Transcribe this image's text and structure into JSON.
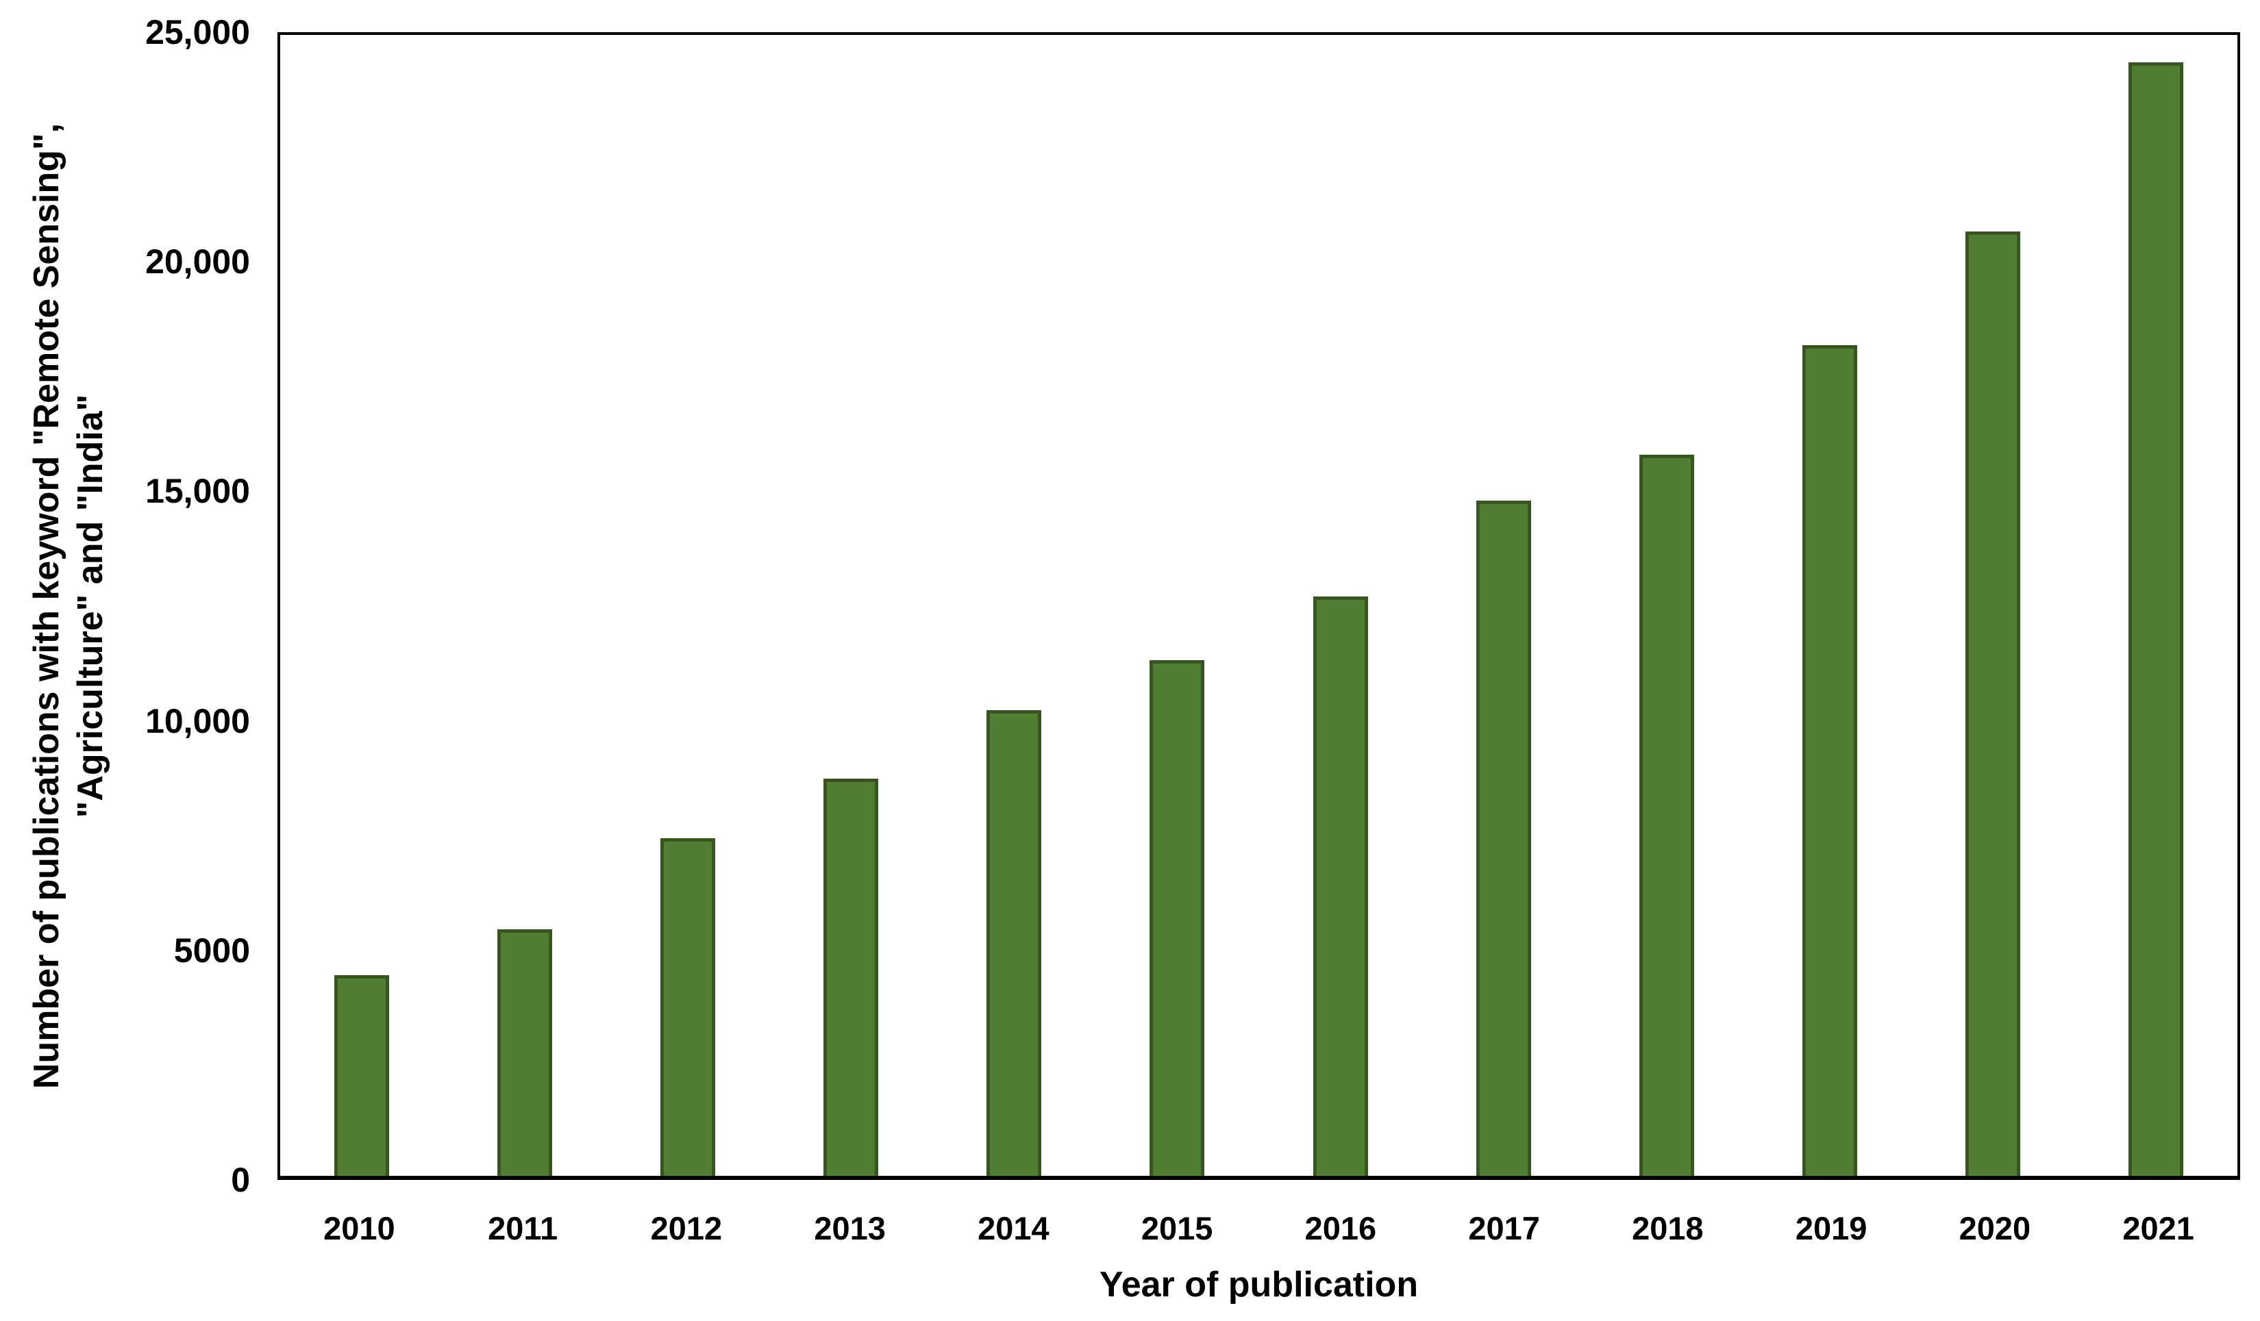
{
  "chart_data": {
    "type": "bar",
    "title": "",
    "categories": [
      "2010",
      "2011",
      "2012",
      "2013",
      "2014",
      "2015",
      "2016",
      "2017",
      "2018",
      "2019",
      "2020",
      "2021"
    ],
    "values": [
      4400,
      5400,
      7400,
      8700,
      10200,
      11300,
      12700,
      14800,
      15800,
      18200,
      20700,
      24400
    ],
    "xlabel": "Year of publication",
    "ylabel_line1": "Number of publications with keyword \"Remote Sensing\",",
    "ylabel_line2": "\"Agriculture\" and \"India\"",
    "ylim": [
      0,
      25000
    ],
    "ytick_values": [
      0,
      5000,
      10000,
      15000,
      20000,
      25000
    ],
    "ytick_labels": [
      "0",
      "5000",
      "10,000",
      "15,000",
      "20,000",
      "25,000"
    ],
    "grid": "off",
    "legend": "none",
    "colors": {
      "bar_fill": "#507E32",
      "bar_border": "#37561F",
      "axis": "#000000",
      "text": "#000000",
      "background": "#FFFFFF"
    }
  }
}
